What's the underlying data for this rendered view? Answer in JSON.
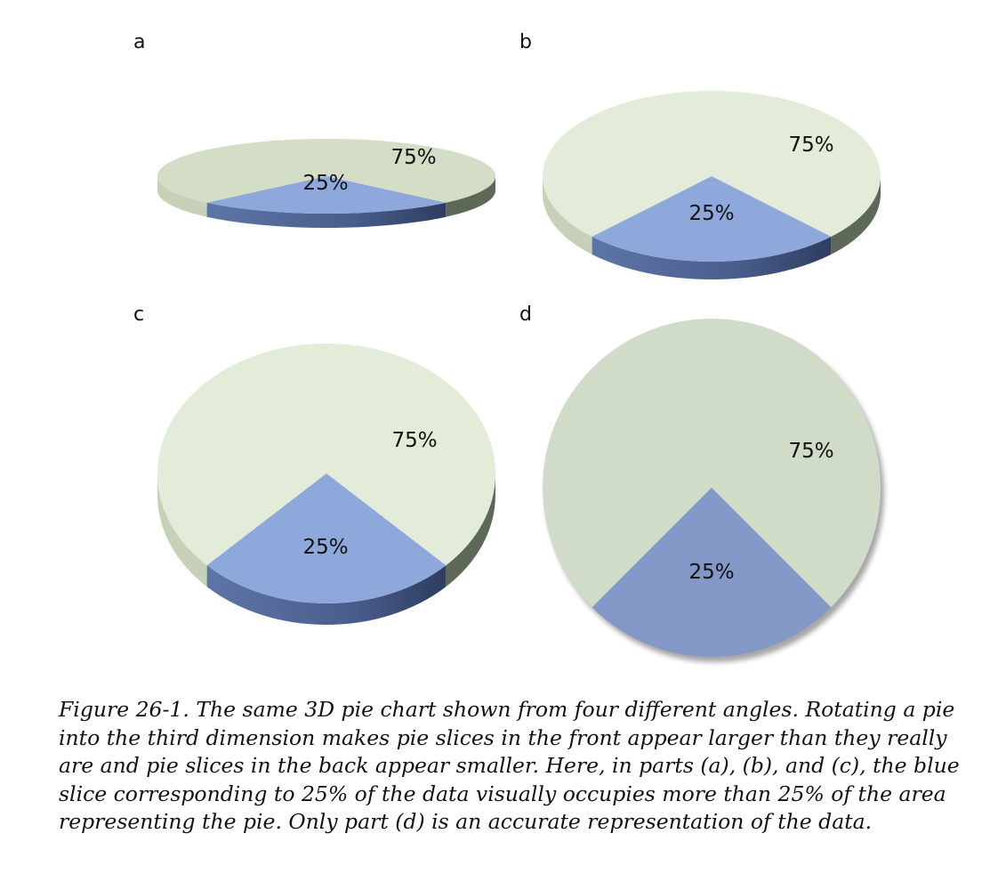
{
  "chart_data": [
    {
      "type": "pie",
      "panel_label": "a",
      "slices": [
        {
          "label": "25%",
          "value": 25,
          "color": "#8FA8DC"
        },
        {
          "label": "75%",
          "value": 75,
          "color": "#D4DDC6"
        }
      ]
    },
    {
      "type": "pie",
      "panel_label": "b",
      "slices": [
        {
          "label": "25%",
          "value": 25,
          "color": "#8FA8DC"
        },
        {
          "label": "75%",
          "value": 75,
          "color": "#E2ECD8"
        }
      ]
    },
    {
      "type": "pie",
      "panel_label": "c",
      "slices": [
        {
          "label": "25%",
          "value": 25,
          "color": "#8FA8DC"
        },
        {
          "label": "75%",
          "value": 75,
          "color": "#E2ECD8"
        }
      ]
    },
    {
      "type": "pie",
      "panel_label": "d",
      "slices": [
        {
          "label": "25%",
          "value": 25,
          "color": "#8498C8"
        },
        {
          "label": "75%",
          "value": 75,
          "color": "#D1DCC8"
        }
      ]
    }
  ],
  "caption": "Figure 26-1. The same 3D pie chart shown from four different angles. Rotating a pie into the third dimension makes pie slices in the front appear larger than they really are and pie slices in the back appear smaller. Here, in parts (a), (b), and (c), the blue slice corresponding to 25% of the data visually occupies more than 25% of the area representing the pie. Only part (d) is an accurate representation of the data."
}
